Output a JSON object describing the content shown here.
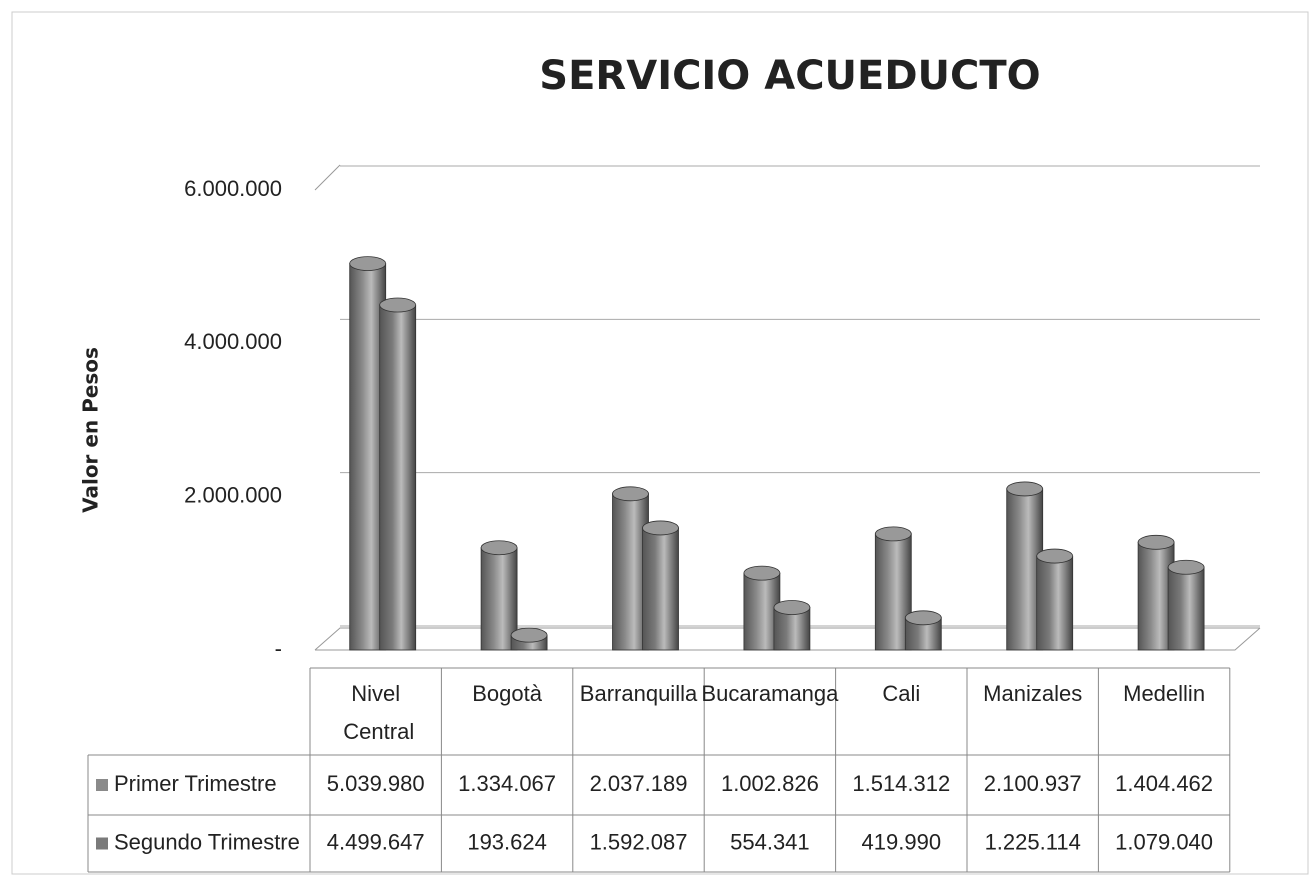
{
  "chart_data": {
    "type": "bar",
    "title": "SERVICIO ACUEDUCTO",
    "y_label": "Valor en Pesos",
    "categories": [
      "Nivel Central",
      "Bogotà",
      "Barranquilla",
      "Bucaramanga",
      "Cali",
      "Manizales",
      "Medellin"
    ],
    "series": [
      {
        "name": "Primer Trimestre",
        "color": "#8a8a8a",
        "values": [
          5039980,
          1334067,
          2037189,
          1002826,
          1514312,
          2100937,
          1404462
        ],
        "value_labels": [
          "5.039.980",
          "1.334.067",
          "2.037.189",
          "1.002.826",
          "1.514.312",
          "2.100.937",
          "1.404.462"
        ]
      },
      {
        "name": "Segundo Trimestre",
        "color": "#7a7a7a",
        "values": [
          4499647,
          193624,
          1592087,
          554341,
          419990,
          1225114,
          1079040
        ],
        "value_labels": [
          "4.499.647",
          "193.624",
          "1.592.087",
          "554.341",
          "419.990",
          "1.225.114",
          "1.079.040"
        ]
      }
    ],
    "ylim": [
      0,
      6000000
    ],
    "yticks": [
      {
        "value": 0,
        "label": "-"
      },
      {
        "value": 2000000,
        "label": "2.000.000"
      },
      {
        "value": 4000000,
        "label": "4.000.000"
      },
      {
        "value": 6000000,
        "label": "6.000.000"
      }
    ],
    "grid": true
  }
}
